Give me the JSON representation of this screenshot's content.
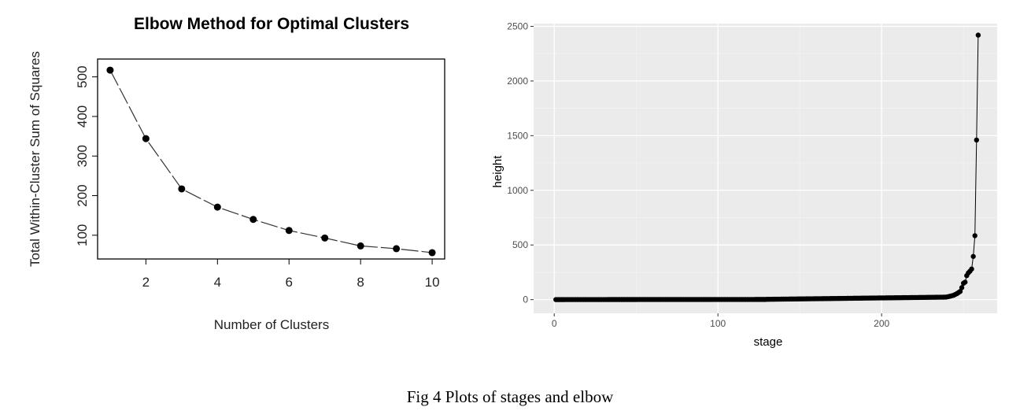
{
  "caption": "Fig 4 Plots of stages and elbow",
  "chart_data": [
    {
      "type": "line",
      "title": "Elbow Method for Optimal Clusters",
      "xlabel": "Number of Clusters",
      "ylabel": "Total Within-Cluster Sum of Squares",
      "x": [
        1,
        2,
        3,
        4,
        5,
        6,
        7,
        8,
        9,
        10
      ],
      "y": [
        517,
        344,
        217,
        171,
        140,
        112,
        93,
        73,
        66,
        56
      ],
      "xticks": [
        "2",
        "4",
        "6",
        "8",
        "10"
      ],
      "yticks": [
        "100",
        "200",
        "300",
        "400",
        "500"
      ],
      "xlim": [
        0.65,
        10.35
      ],
      "ylim": [
        40,
        545
      ],
      "line_style": "dashed",
      "marker": "filled-circle",
      "grid": false
    },
    {
      "type": "line",
      "title": "",
      "xlabel": "stage",
      "ylabel": "height",
      "xticks": [
        "0",
        "100",
        "200"
      ],
      "yticks": [
        "0",
        "500",
        "1000",
        "1500",
        "2000",
        "2500"
      ],
      "xlim": [
        -12.6,
        270.6
      ],
      "ylim": [
        -125,
        2525
      ],
      "grid": true,
      "background": "#ebebeb",
      "marker": "filled-circle",
      "n_points": 258,
      "pattern": "near-zero heights for stages 1–130, slowly rising to about 25 by stage 240, then sharp increase",
      "tail_points": [
        {
          "x": 240,
          "y": 25
        },
        {
          "x": 242,
          "y": 32
        },
        {
          "x": 244,
          "y": 40
        },
        {
          "x": 246,
          "y": 55
        },
        {
          "x": 248,
          "y": 75
        },
        {
          "x": 249,
          "y": 110
        },
        {
          "x": 250,
          "y": 150
        },
        {
          "x": 251,
          "y": 160
        },
        {
          "x": 252,
          "y": 220
        },
        {
          "x": 253,
          "y": 245
        },
        {
          "x": 254,
          "y": 260
        },
        {
          "x": 255,
          "y": 280
        },
        {
          "x": 256,
          "y": 395
        },
        {
          "x": 257,
          "y": 585
        },
        {
          "x": 258,
          "y": 1460
        },
        {
          "x": 259,
          "y": 2420
        }
      ]
    }
  ]
}
